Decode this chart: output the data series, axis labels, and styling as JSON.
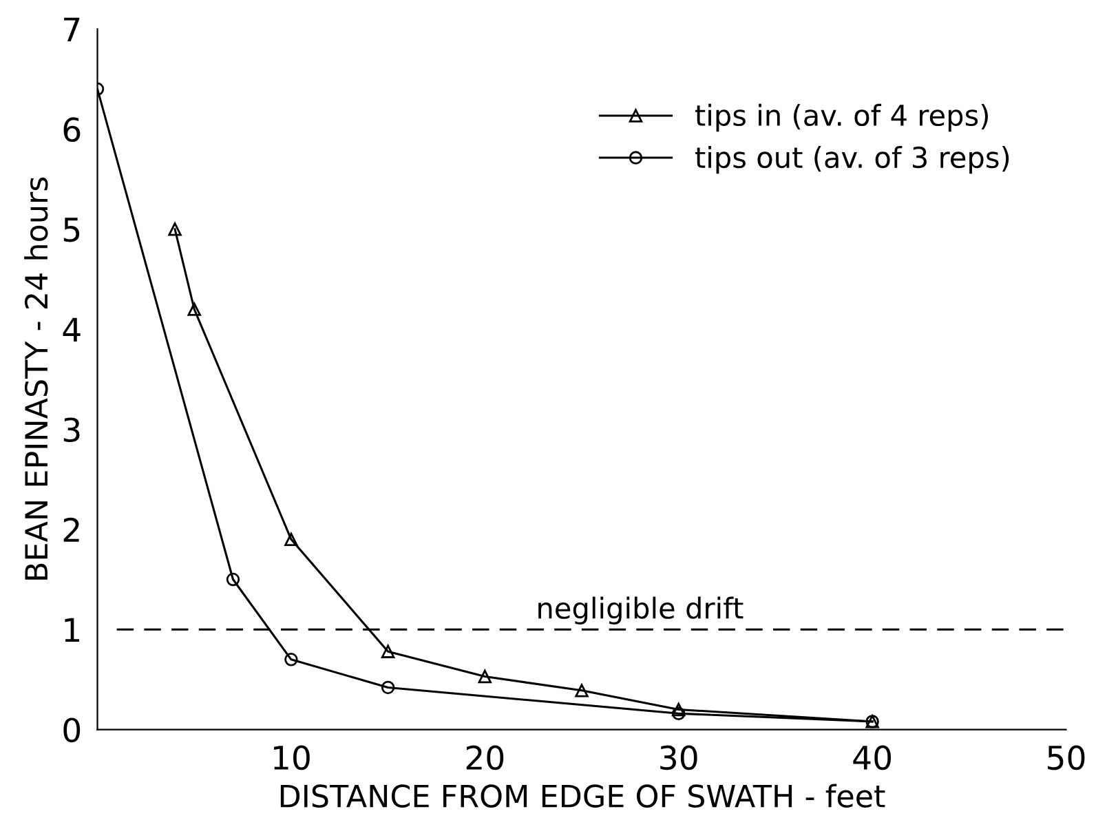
{
  "chart_data": {
    "type": "line",
    "xlabel": "DISTANCE FROM EDGE OF SWATH - feet",
    "ylabel": "BEAN EPINASTY - 24 hours",
    "xlim": [
      0,
      50
    ],
    "ylim": [
      0,
      7
    ],
    "xticks": [
      10,
      20,
      30,
      40,
      50
    ],
    "yticks": [
      0,
      1,
      2,
      3,
      4,
      5,
      6,
      7
    ],
    "grid": false,
    "legend": "top right",
    "line_style": "solid",
    "series": [
      {
        "name": "tips in (av. of 4 reps)",
        "color": "#000000",
        "marker": "triangle",
        "x": [
          4,
          5,
          10,
          15,
          20,
          25,
          30,
          40
        ],
        "values": [
          5.0,
          4.2,
          1.9,
          0.78,
          0.53,
          0.39,
          0.2,
          0.08
        ]
      },
      {
        "name": "tips out (av. of 3 reps)",
        "color": "#000000",
        "marker": "circle",
        "x": [
          0,
          7,
          10,
          15,
          30,
          40
        ],
        "values": [
          6.4,
          1.5,
          0.7,
          0.42,
          0.16,
          0.08
        ]
      }
    ],
    "ref_lines": [
      {
        "axis": "y",
        "value": 1,
        "label": "negligible drift",
        "line_style": "dashed",
        "color": "#000000"
      }
    ]
  }
}
